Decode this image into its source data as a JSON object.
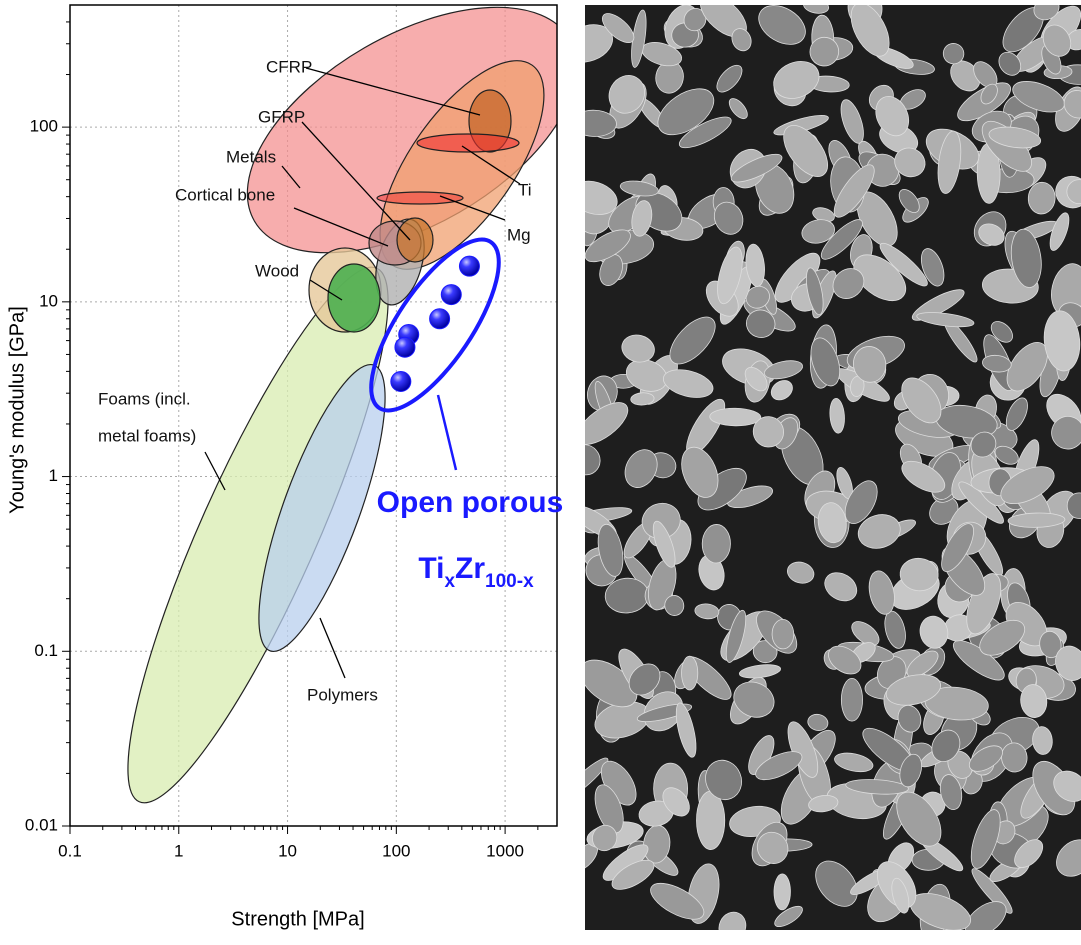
{
  "chart_data": {
    "type": "scatter",
    "x_label": "Strength [MPa]",
    "y_label": "Young's modulus [GPa]",
    "x": [
      470,
      320,
      250,
      130,
      120,
      110
    ],
    "values": [
      16,
      11,
      8,
      6.5,
      5.5,
      3.5
    ],
    "color": "#1a1aff",
    "xscale": "log",
    "yscale": "log",
    "xlim": [
      0.1,
      3000
    ],
    "ylim": [
      0.01,
      500
    ],
    "xticks": [
      0.1,
      1,
      10,
      100,
      1000
    ],
    "yticks": [
      0.01,
      0.1,
      1,
      10,
      100
    ],
    "grid": true,
    "annotations": {
      "cfrp": "CFRP",
      "gfrp": "GFRP",
      "metals": "Metals",
      "cortical_bone": "Cortical bone",
      "wood": "Wood",
      "foams": [
        "Foams (incl.",
        "metal foams)"
      ],
      "ti": "Ti",
      "mg": "Mg",
      "polymers": "Polymers",
      "open_porous": "Open porous",
      "alloy": [
        "Ti",
        "x",
        "Zr",
        "100-x"
      ]
    }
  }
}
